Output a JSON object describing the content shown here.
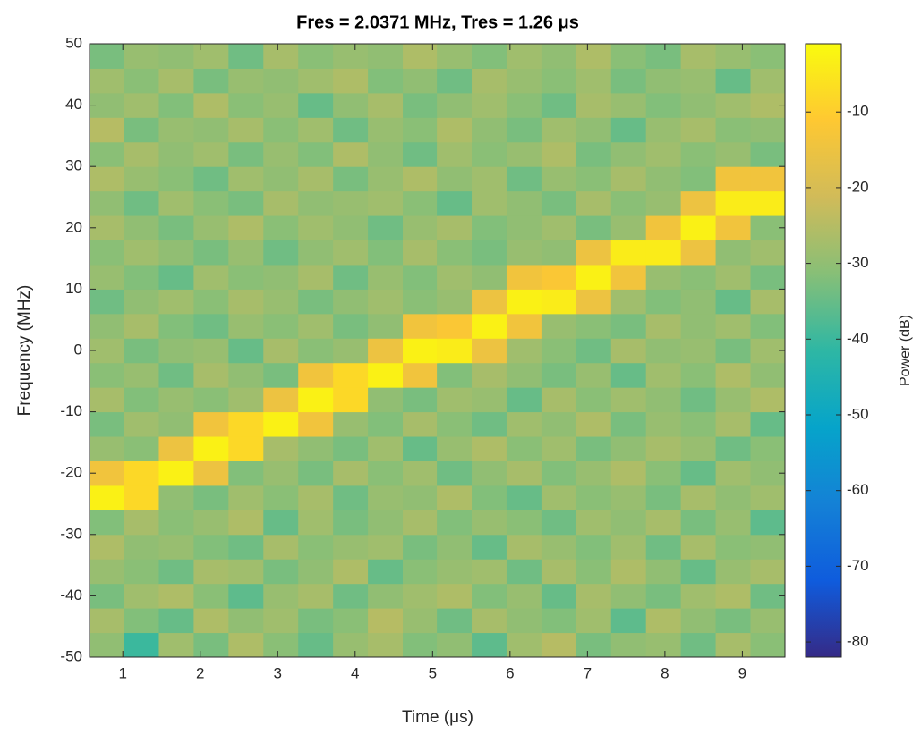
{
  "chart_data": {
    "type": "heatmap",
    "title": "Fres = 2.0371 MHz, Tres = 1.26 μs",
    "x_label": "Time (μs)",
    "y_label": "Frequency (MHz)",
    "colorbar_label": "Power (dB)",
    "colormap": "parula",
    "xlim": [
      0.57,
      9.55
    ],
    "xticks": [
      1,
      2,
      3,
      4,
      5,
      6,
      7,
      8,
      9
    ],
    "ylim": [
      -50,
      50
    ],
    "yticks": [
      -50,
      -40,
      -30,
      -20,
      -10,
      0,
      10,
      20,
      30,
      40,
      50
    ],
    "clim": [
      -82,
      -1
    ],
    "cticks": [
      -80,
      -70,
      -60,
      -50,
      -40,
      -30,
      -20,
      -10
    ],
    "x": [
      0.79,
      1.24,
      1.69,
      2.14,
      2.59,
      3.04,
      3.49,
      3.94,
      4.39,
      4.84,
      5.28,
      5.73,
      6.18,
      6.63,
      7.08,
      7.53,
      7.98,
      8.43,
      8.88,
      9.33
    ],
    "y": [
      -48,
      -44,
      -40,
      -36,
      -32,
      -28,
      -24,
      -20,
      -16,
      -12,
      -8,
      -4,
      0,
      4,
      8,
      12,
      16,
      20,
      24,
      28,
      32,
      36,
      40,
      44,
      48
    ],
    "z": [
      [
        -30,
        -40,
        -28,
        -33,
        -26,
        -31,
        -35,
        -29,
        -27,
        -32,
        -30,
        -36,
        -28,
        -25,
        -33,
        -30,
        -29,
        -34,
        -27,
        -31
      ],
      [
        -27,
        -32,
        -35,
        -26,
        -30,
        -28,
        -33,
        -31,
        -25,
        -29,
        -34,
        -27,
        -30,
        -32,
        -28,
        -36,
        -26,
        -30,
        -33,
        -29
      ],
      [
        -33,
        -28,
        -26,
        -31,
        -36,
        -29,
        -27,
        -34,
        -30,
        -28,
        -26,
        -32,
        -29,
        -35,
        -27,
        -30,
        -33,
        -28,
        -26,
        -34
      ],
      [
        -29,
        -31,
        -34,
        -27,
        -28,
        -33,
        -30,
        -26,
        -35,
        -31,
        -29,
        -28,
        -34,
        -27,
        -31,
        -26,
        -30,
        -35,
        -29,
        -27
      ],
      [
        -26,
        -30,
        -29,
        -32,
        -34,
        -27,
        -31,
        -29,
        -28,
        -33,
        -30,
        -35,
        -27,
        -29,
        -32,
        -28,
        -34,
        -27,
        -31,
        -30
      ],
      [
        -32,
        -27,
        -31,
        -29,
        -26,
        -35,
        -28,
        -33,
        -30,
        -27,
        -32,
        -29,
        -31,
        -34,
        -28,
        -30,
        -27,
        -33,
        -29,
        -36
      ],
      [
        -3,
        -8,
        -30,
        -33,
        -28,
        -31,
        -27,
        -34,
        -29,
        -30,
        -26,
        -32,
        -35,
        -28,
        -31,
        -29,
        -33,
        -27,
        -30,
        -28
      ],
      [
        -14,
        -8,
        -3,
        -15,
        -32,
        -29,
        -33,
        -27,
        -31,
        -28,
        -34,
        -30,
        -27,
        -32,
        -29,
        -26,
        -31,
        -35,
        -28,
        -30
      ],
      [
        -29,
        -31,
        -15,
        -3,
        -8,
        -27,
        -30,
        -33,
        -28,
        -35,
        -29,
        -26,
        -31,
        -28,
        -33,
        -30,
        -27,
        -29,
        -34,
        -31
      ],
      [
        -33,
        -28,
        -30,
        -14,
        -8,
        -3,
        -14,
        -29,
        -32,
        -27,
        -31,
        -34,
        -28,
        -30,
        -26,
        -33,
        -29,
        -31,
        -27,
        -35
      ],
      [
        -27,
        -32,
        -29,
        -31,
        -28,
        -15,
        -3,
        -8,
        -30,
        -33,
        -28,
        -29,
        -35,
        -27,
        -31,
        -28,
        -30,
        -34,
        -29,
        -26
      ],
      [
        -31,
        -29,
        -34,
        -27,
        -30,
        -33,
        -14,
        -8,
        -3,
        -14,
        -32,
        -27,
        -30,
        -33,
        -29,
        -35,
        -28,
        -31,
        -26,
        -30
      ],
      [
        -28,
        -33,
        -30,
        -29,
        -35,
        -27,
        -31,
        -29,
        -15,
        -3,
        -4,
        -15,
        -28,
        -31,
        -34,
        -27,
        -30,
        -29,
        -33,
        -28
      ],
      [
        -30,
        -27,
        -32,
        -34,
        -29,
        -31,
        -28,
        -33,
        -30,
        -14,
        -12,
        -3,
        -14,
        -29,
        -31,
        -33,
        -27,
        -30,
        -28,
        -32
      ],
      [
        -34,
        -30,
        -28,
        -31,
        -27,
        -29,
        -33,
        -30,
        -28,
        -31,
        -29,
        -15,
        -3,
        -4,
        -15,
        -28,
        -32,
        -30,
        -35,
        -27
      ],
      [
        -29,
        -32,
        -35,
        -28,
        -31,
        -30,
        -27,
        -34,
        -29,
        -32,
        -28,
        -30,
        -14,
        -12,
        -3,
        -14,
        -29,
        -31,
        -28,
        -33
      ],
      [
        -31,
        -28,
        -30,
        -33,
        -29,
        -34,
        -30,
        -28,
        -32,
        -27,
        -31,
        -33,
        -29,
        -30,
        -15,
        -4,
        -4,
        -15,
        -30,
        -28
      ],
      [
        -27,
        -30,
        -33,
        -29,
        -26,
        -31,
        -28,
        -30,
        -34,
        -29,
        -27,
        -32,
        -30,
        -28,
        -33,
        -29,
        -14,
        -3,
        -14,
        -31
      ],
      [
        -30,
        -34,
        -28,
        -31,
        -33,
        -27,
        -30,
        -29,
        -28,
        -31,
        -35,
        -28,
        -30,
        -33,
        -27,
        -31,
        -29,
        -15,
        -4,
        -4
      ],
      [
        -26,
        -29,
        -31,
        -34,
        -28,
        -30,
        -27,
        -33,
        -29,
        -26,
        -30,
        -28,
        -34,
        -29,
        -31,
        -27,
        -30,
        -32,
        -14,
        -14
      ],
      [
        -31,
        -27,
        -30,
        -28,
        -33,
        -29,
        -32,
        -26,
        -30,
        -34,
        -28,
        -31,
        -29,
        -26,
        -33,
        -30,
        -28,
        -31,
        -29,
        -33
      ],
      [
        -25,
        -33,
        -29,
        -30,
        -27,
        -31,
        -28,
        -34,
        -29,
        -31,
        -26,
        -30,
        -33,
        -28,
        -30,
        -35,
        -29,
        -27,
        -31,
        -30
      ],
      [
        -30,
        -28,
        -32,
        -26,
        -31,
        -29,
        -35,
        -30,
        -27,
        -33,
        -30,
        -28,
        -31,
        -34,
        -27,
        -29,
        -32,
        -30,
        -28,
        -26
      ],
      [
        -28,
        -31,
        -27,
        -33,
        -29,
        -30,
        -28,
        -26,
        -32,
        -30,
        -34,
        -27,
        -29,
        -31,
        -28,
        -33,
        -30,
        -29,
        -35,
        -28
      ],
      [
        -33,
        -29,
        -30,
        -28,
        -34,
        -27,
        -31,
        -29,
        -30,
        -26,
        -29,
        -32,
        -28,
        -30,
        -26,
        -31,
        -33,
        -27,
        -29,
        -31
      ]
    ]
  }
}
